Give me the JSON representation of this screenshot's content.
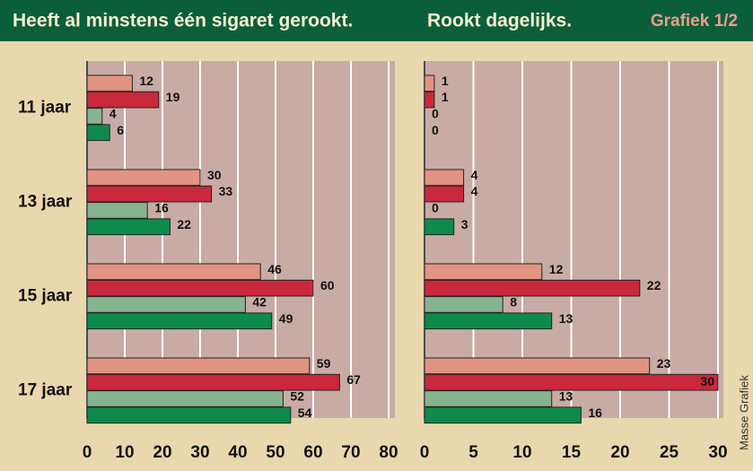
{
  "label": "Grafiek 1/2",
  "credit": "Masse Grafiek",
  "chart_data": [
    {
      "type": "bar",
      "orientation": "horizontal",
      "title": "Heeft al minstens één sigaret gerookt.",
      "categories": [
        "11 jaar",
        "13 jaar",
        "15 jaar",
        "17 jaar"
      ],
      "series": [
        {
          "color": "#e29482",
          "values": [
            12,
            30,
            46,
            59
          ]
        },
        {
          "color": "#c9283c",
          "values": [
            19,
            33,
            60,
            67
          ]
        },
        {
          "color": "#86b48e",
          "values": [
            4,
            16,
            42,
            52
          ]
        },
        {
          "color": "#0e8a4a",
          "values": [
            6,
            22,
            49,
            54
          ]
        }
      ],
      "xlim": [
        0,
        80
      ],
      "xticks": [
        0,
        10,
        20,
        30,
        40,
        50,
        60,
        70,
        80
      ],
      "grid": true
    },
    {
      "type": "bar",
      "orientation": "horizontal",
      "title": "Rookt dagelijks.",
      "series": [
        {
          "color": "#e29482",
          "values": [
            1,
            4,
            12,
            23
          ]
        },
        {
          "color": "#c9283c",
          "values": [
            1,
            4,
            22,
            30
          ]
        },
        {
          "color": "#86b48e",
          "values": [
            0,
            0,
            8,
            13
          ]
        },
        {
          "color": "#0e8a4a",
          "values": [
            0,
            3,
            13,
            16
          ]
        }
      ],
      "xlim": [
        0,
        30
      ],
      "xticks": [
        0,
        5,
        10,
        15,
        20,
        25,
        30
      ],
      "grid": true
    }
  ]
}
